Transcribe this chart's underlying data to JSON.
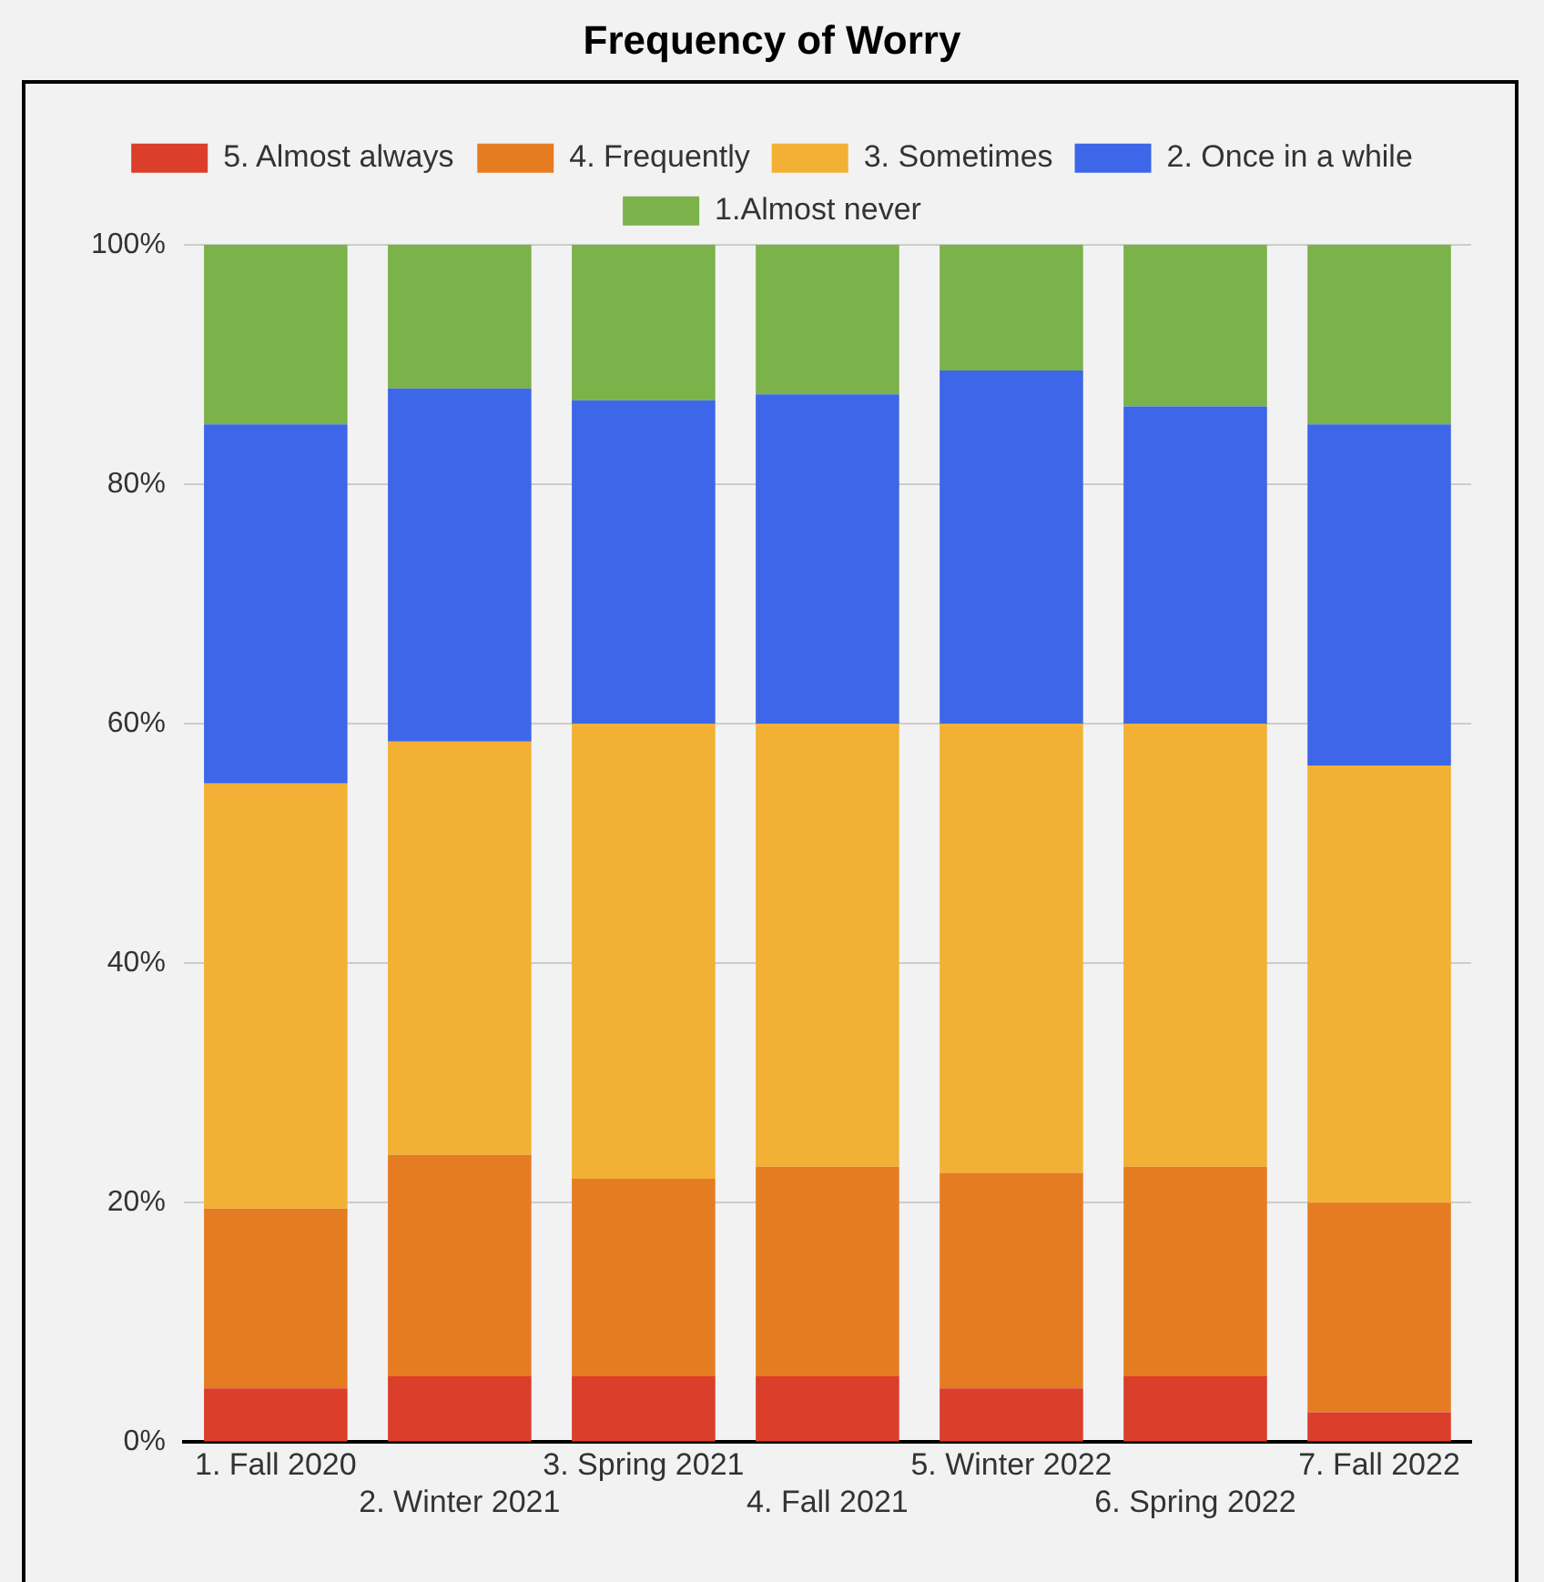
{
  "chart_data": {
    "type": "bar",
    "title": "Frequency of Worry",
    "stacked": true,
    "categories": [
      "1. Fall 2020",
      "2. Winter 2021",
      "3. Spring 2021",
      "4. Fall 2021",
      "5. Winter 2022",
      "6. Spring 2022",
      "7. Fall 2022"
    ],
    "series": [
      {
        "name": "5. Almost always",
        "color": "#db3e2a",
        "values": [
          4.5,
          5.5,
          5.5,
          5.5,
          4.5,
          5.5,
          2.5
        ]
      },
      {
        "name": "4. Frequently",
        "color": "#e67c22",
        "values": [
          15,
          18.5,
          16.5,
          17.5,
          18,
          17.5,
          17.5
        ]
      },
      {
        "name": "3. Sometimes",
        "color": "#f2b134",
        "values": [
          35.5,
          34.5,
          38,
          37,
          37.5,
          37,
          36.5
        ]
      },
      {
        "name": "2. Once in a while",
        "color": "#3d67e8",
        "values": [
          30,
          29.5,
          27,
          27.5,
          29.5,
          26.5,
          28.5
        ]
      },
      {
        "name": "1.Almost never",
        "color": "#7bb24a",
        "values": [
          15,
          12,
          13,
          12.5,
          10.5,
          13.5,
          15
        ]
      }
    ],
    "ylim": [
      0,
      100
    ],
    "yticks": [
      {
        "value": 0,
        "label": "0%"
      },
      {
        "value": 20,
        "label": "20%"
      },
      {
        "value": 40,
        "label": "40%"
      },
      {
        "value": 60,
        "label": "60%"
      },
      {
        "value": 80,
        "label": "80%"
      },
      {
        "value": 100,
        "label": "100%"
      }
    ],
    "grid": "y",
    "legend": "top"
  }
}
